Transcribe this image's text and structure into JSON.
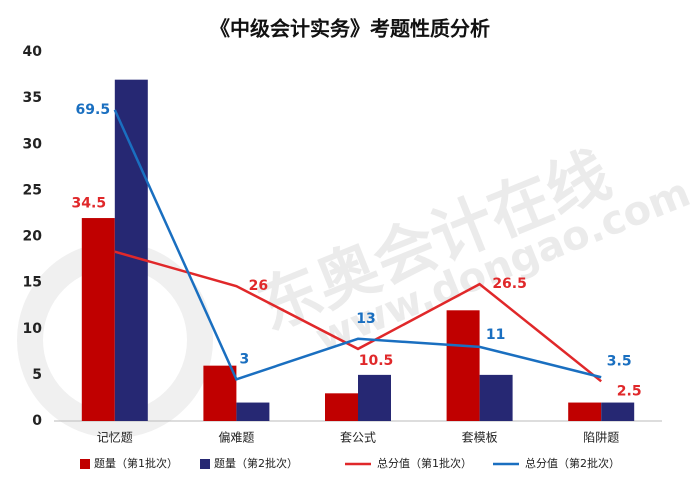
{
  "chart_data": {
    "type": "bar",
    "title": "《中级会计实务》考题性质分析",
    "watermark": [
      "东奥会计在线",
      "www.dongao.com"
    ],
    "categories": [
      "记忆题",
      "偏难题",
      "套公式",
      "套模板",
      "陷阱题"
    ],
    "ylim": [
      0,
      40
    ],
    "yticks": [
      0,
      5,
      10,
      15,
      20,
      25,
      30,
      35,
      40
    ],
    "y2lim": [
      -7.3,
      83.8
    ],
    "series": [
      {
        "name": "题量（第1批次）",
        "type": "bar",
        "color": "#c00000",
        "values": [
          22,
          6,
          3,
          12,
          2
        ]
      },
      {
        "name": "题量（第2批次）",
        "type": "bar",
        "color": "#262873",
        "values": [
          37,
          2,
          5,
          5,
          2
        ]
      },
      {
        "name": "总分值（第1批次）",
        "type": "line",
        "axis": "y2",
        "color": "#e0282a",
        "values": [
          34.5,
          26,
          10.5,
          26.5,
          2.5
        ]
      },
      {
        "name": "总分值（第2批次）",
        "type": "line",
        "axis": "y2",
        "color": "#1a6fc0",
        "values": [
          69.5,
          3,
          13,
          11,
          3.5
        ]
      }
    ]
  }
}
